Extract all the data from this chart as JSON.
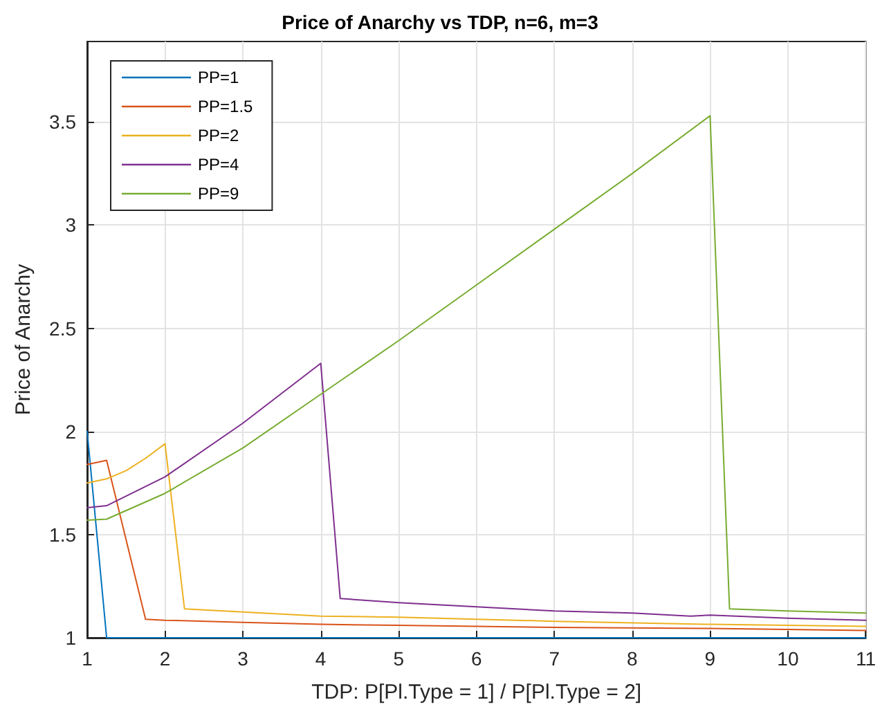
{
  "chart_data": {
    "type": "line",
    "title": "Price of Anarchy vs TDP, n=6, m=3",
    "xlabel": "TDP: P[Pl.Type = 1] / P[Pl.Type = 2]",
    "ylabel": "Price of Anarchy",
    "xlim": [
      1,
      11
    ],
    "xticks": [
      1,
      2,
      3,
      4,
      5,
      6,
      7,
      8,
      9,
      10,
      11
    ],
    "ylim": [
      1,
      3.89
    ],
    "yticks": [
      1,
      1.5,
      2,
      2.5,
      3,
      3.5
    ],
    "grid": true,
    "legend": "top left",
    "marker": "none",
    "line_style": "solid",
    "series": [
      {
        "name": "PP=1",
        "color": "#0072bd",
        "x": [
          1,
          1.25,
          11
        ],
        "values": [
          2,
          1,
          1
        ]
      },
      {
        "name": "PP=1.5",
        "color": "#d95319",
        "x": [
          1,
          1.25,
          1.75,
          2,
          3,
          4,
          5,
          7,
          9,
          11
        ],
        "values": [
          1.84,
          1.86,
          1.09,
          1.085,
          1.075,
          1.065,
          1.06,
          1.05,
          1.045,
          1.035
        ]
      },
      {
        "name": "PP=2",
        "color": "#edb120",
        "x": [
          1,
          1.25,
          1.5,
          1.75,
          2,
          2.25,
          3,
          4,
          5,
          7,
          9,
          11
        ],
        "values": [
          1.75,
          1.77,
          1.81,
          1.87,
          1.94,
          1.14,
          1.125,
          1.105,
          1.1,
          1.08,
          1.065,
          1.055
        ]
      },
      {
        "name": "PP=4",
        "color": "#7e2f8e",
        "x": [
          1,
          1.25,
          2,
          3,
          4,
          4.25,
          5,
          6,
          7,
          8,
          8.75,
          9,
          10,
          11
        ],
        "values": [
          1.63,
          1.64,
          1.78,
          2.04,
          2.33,
          1.19,
          1.17,
          1.15,
          1.13,
          1.12,
          1.105,
          1.11,
          1.095,
          1.085
        ]
      },
      {
        "name": "PP=9",
        "color": "#77ac30",
        "x": [
          1,
          1.25,
          2,
          3,
          4,
          5,
          6,
          7,
          8,
          9,
          9.25,
          10,
          11
        ],
        "values": [
          1.57,
          1.575,
          1.7,
          1.92,
          2.18,
          2.44,
          2.71,
          2.98,
          3.25,
          3.53,
          1.14,
          1.13,
          1.12
        ]
      }
    ]
  }
}
